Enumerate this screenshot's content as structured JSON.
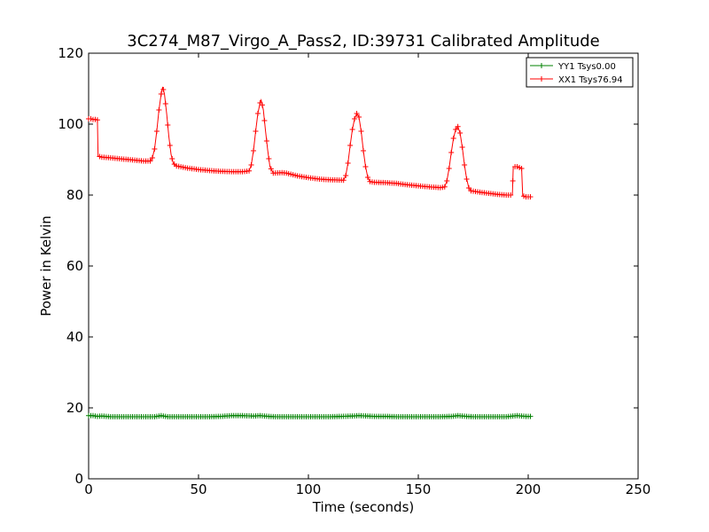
{
  "chart_data": {
    "type": "line",
    "title": "3C274_M87_Virgo_A_Pass2, ID:39731 Calibrated Amplitude",
    "xlabel": "Time (seconds)",
    "ylabel": "Power in Kelvin",
    "xlim": [
      0,
      250
    ],
    "ylim": [
      0,
      120
    ],
    "xticks": [
      0,
      50,
      100,
      150,
      200,
      250
    ],
    "yticks": [
      0,
      20,
      40,
      60,
      80,
      100,
      120
    ],
    "grid": false,
    "legend_position": "top-right",
    "marker": "+",
    "series": [
      {
        "name": "YY1 Tsys0.00",
        "color": "#008000",
        "points": [
          [
            0,
            17.8
          ],
          [
            2,
            17.8
          ],
          [
            4,
            17.6
          ],
          [
            6,
            17.7
          ],
          [
            8,
            17.6
          ],
          [
            10,
            17.5
          ],
          [
            15,
            17.5
          ],
          [
            20,
            17.5
          ],
          [
            25,
            17.5
          ],
          [
            30,
            17.5
          ],
          [
            33,
            17.8
          ],
          [
            36,
            17.5
          ],
          [
            40,
            17.5
          ],
          [
            45,
            17.5
          ],
          [
            50,
            17.5
          ],
          [
            55,
            17.5
          ],
          [
            60,
            17.6
          ],
          [
            65,
            17.8
          ],
          [
            70,
            17.8
          ],
          [
            75,
            17.7
          ],
          [
            78,
            17.8
          ],
          [
            82,
            17.6
          ],
          [
            85,
            17.5
          ],
          [
            90,
            17.5
          ],
          [
            95,
            17.5
          ],
          [
            100,
            17.5
          ],
          [
            105,
            17.5
          ],
          [
            110,
            17.5
          ],
          [
            115,
            17.6
          ],
          [
            120,
            17.7
          ],
          [
            123,
            17.8
          ],
          [
            127,
            17.7
          ],
          [
            130,
            17.6
          ],
          [
            135,
            17.6
          ],
          [
            140,
            17.5
          ],
          [
            145,
            17.5
          ],
          [
            150,
            17.5
          ],
          [
            155,
            17.5
          ],
          [
            160,
            17.5
          ],
          [
            165,
            17.6
          ],
          [
            168,
            17.8
          ],
          [
            172,
            17.6
          ],
          [
            175,
            17.5
          ],
          [
            180,
            17.5
          ],
          [
            185,
            17.5
          ],
          [
            190,
            17.5
          ],
          [
            193,
            17.7
          ],
          [
            195,
            17.8
          ],
          [
            197,
            17.7
          ],
          [
            199,
            17.6
          ],
          [
            201,
            17.6
          ]
        ]
      },
      {
        "name": "XX1 Tsys76.94",
        "color": "#ff0000",
        "points": [
          [
            0,
            101.5
          ],
          [
            1,
            101.5
          ],
          [
            2,
            101.3
          ],
          [
            3,
            101.3
          ],
          [
            4,
            101.2
          ],
          [
            4.3,
            91.0
          ],
          [
            6,
            90.7
          ],
          [
            8,
            90.6
          ],
          [
            10,
            90.5
          ],
          [
            15,
            90.2
          ],
          [
            20,
            89.9
          ],
          [
            25,
            89.6
          ],
          [
            28,
            89.6
          ],
          [
            29,
            90.5
          ],
          [
            30,
            93.0
          ],
          [
            31,
            98.0
          ],
          [
            32,
            104.0
          ],
          [
            33,
            108.5
          ],
          [
            33.7,
            110.5
          ],
          [
            34.5,
            108.5
          ],
          [
            35.5,
            103.0
          ],
          [
            36.5,
            96.5
          ],
          [
            37.5,
            91.5
          ],
          [
            38.5,
            89.0
          ],
          [
            40,
            88.2
          ],
          [
            45,
            87.6
          ],
          [
            50,
            87.2
          ],
          [
            55,
            86.9
          ],
          [
            60,
            86.7
          ],
          [
            65,
            86.6
          ],
          [
            70,
            86.6
          ],
          [
            73,
            86.8
          ],
          [
            74,
            88.5
          ],
          [
            75,
            92.5
          ],
          [
            76,
            98.0
          ],
          [
            77,
            103.0
          ],
          [
            78,
            106.0
          ],
          [
            78.5,
            106.8
          ],
          [
            79.5,
            104.0
          ],
          [
            80.5,
            98.0
          ],
          [
            81.5,
            92.5
          ],
          [
            82.5,
            88.0
          ],
          [
            84,
            86.2
          ],
          [
            88,
            86.3
          ],
          [
            90,
            86.2
          ],
          [
            95,
            85.4
          ],
          [
            100,
            84.9
          ],
          [
            105,
            84.5
          ],
          [
            110,
            84.3
          ],
          [
            116,
            84.2
          ],
          [
            117,
            85.5
          ],
          [
            118,
            89.0
          ],
          [
            119,
            94.0
          ],
          [
            120,
            98.5
          ],
          [
            121,
            101.5
          ],
          [
            122,
            103.0
          ],
          [
            123,
            102.0
          ],
          [
            124,
            98.0
          ],
          [
            125,
            92.5
          ],
          [
            126,
            88.0
          ],
          [
            127,
            85.0
          ],
          [
            128,
            83.8
          ],
          [
            130,
            83.6
          ],
          [
            135,
            83.5
          ],
          [
            140,
            83.3
          ],
          [
            145,
            82.9
          ],
          [
            150,
            82.6
          ],
          [
            155,
            82.3
          ],
          [
            160,
            82.1
          ],
          [
            162,
            82.3
          ],
          [
            163,
            84.0
          ],
          [
            164,
            87.5
          ],
          [
            165,
            92.0
          ],
          [
            166,
            96.0
          ],
          [
            167,
            98.5
          ],
          [
            168,
            99.3
          ],
          [
            169,
            97.5
          ],
          [
            170,
            93.5
          ],
          [
            171,
            88.5
          ],
          [
            172,
            84.5
          ],
          [
            173,
            82.0
          ],
          [
            174,
            81.2
          ],
          [
            178,
            80.8
          ],
          [
            182,
            80.5
          ],
          [
            186,
            80.2
          ],
          [
            190,
            80.0
          ],
          [
            192.8,
            80.0
          ],
          [
            193.2,
            88.0
          ],
          [
            195,
            88.0
          ],
          [
            197,
            87.5
          ],
          [
            197.5,
            79.8
          ],
          [
            199,
            79.5
          ],
          [
            201,
            79.5
          ]
        ]
      }
    ]
  }
}
